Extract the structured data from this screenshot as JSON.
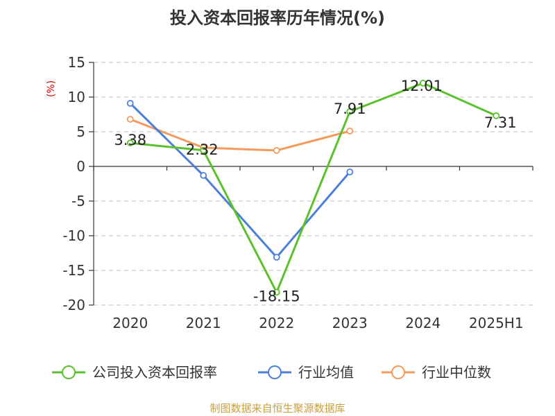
{
  "chart_data": {
    "type": "line",
    "title": "投入资本回报率历年情况(%)",
    "ylabel": "(%)",
    "categories": [
      "2020",
      "2021",
      "2022",
      "2023",
      "2024",
      "2025H1"
    ],
    "ylim": [
      -20,
      15
    ],
    "yticks": [
      15,
      10,
      5,
      0,
      -5,
      -10,
      -15,
      -20
    ],
    "grid": true,
    "legend_position": "bottom",
    "series": [
      {
        "name": "公司投入资本回报率",
        "color": "#5ac12b",
        "values": [
          3.38,
          2.32,
          -18.15,
          7.91,
          12.01,
          7.31
        ],
        "labels": [
          "3.38",
          "2.32",
          "-18.15",
          "7.91",
          "12.01",
          "7.31"
        ]
      },
      {
        "name": "行业均值",
        "color": "#4a7fdc",
        "values": [
          9.1,
          -1.3,
          -13.1,
          -0.8,
          null,
          null
        ]
      },
      {
        "name": "行业中位数",
        "color": "#f59a5c",
        "values": [
          6.8,
          2.7,
          2.3,
          5.1,
          null,
          null
        ]
      }
    ],
    "axis_color": "#333333",
    "grid_color": "#cccccc",
    "ylabel_color": "#dd0000"
  },
  "footer": {
    "text": "制图数据来自恒生聚源数据库",
    "color": "#c8a040"
  }
}
